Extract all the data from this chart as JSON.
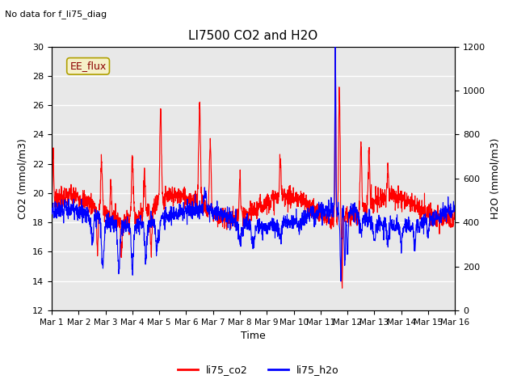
{
  "title": "LI7500 CO2 and H2O",
  "subtitle": "No data for f_li75_diag",
  "xlabel": "Time",
  "ylabel_left": "CO2 (mmol/m3)",
  "ylabel_right": "H2O (mmol/m3)",
  "ylim_left": [
    12,
    30
  ],
  "ylim_right": [
    0,
    1200
  ],
  "yticks_left": [
    12,
    14,
    16,
    18,
    20,
    22,
    24,
    26,
    28,
    30
  ],
  "yticks_right": [
    0,
    200,
    400,
    600,
    800,
    1000,
    1200
  ],
  "xtick_labels": [
    "Mar 1",
    "Mar 2",
    "Mar 3",
    "Mar 4",
    "Mar 5",
    "Mar 6",
    "Mar 7",
    "Mar 8",
    "Mar 9",
    "Mar 10",
    "Mar 11",
    "Mar 12",
    "Mar 13",
    "Mar 14",
    "Mar 15",
    "Mar 16"
  ],
  "legend_labels": [
    "li75_co2",
    "li75_h2o"
  ],
  "legend_colors": [
    "red",
    "blue"
  ],
  "annotation_text": "EE_flux",
  "annotation_box_color": "#f5f0c8",
  "annotation_box_edge": "#b0a000",
  "background_color": "#e8e8e8",
  "co2_color": "red",
  "h2o_color": "blue",
  "n_points": 2000,
  "n_days": 15,
  "fig_width": 6.4,
  "fig_height": 4.8,
  "dpi": 100
}
